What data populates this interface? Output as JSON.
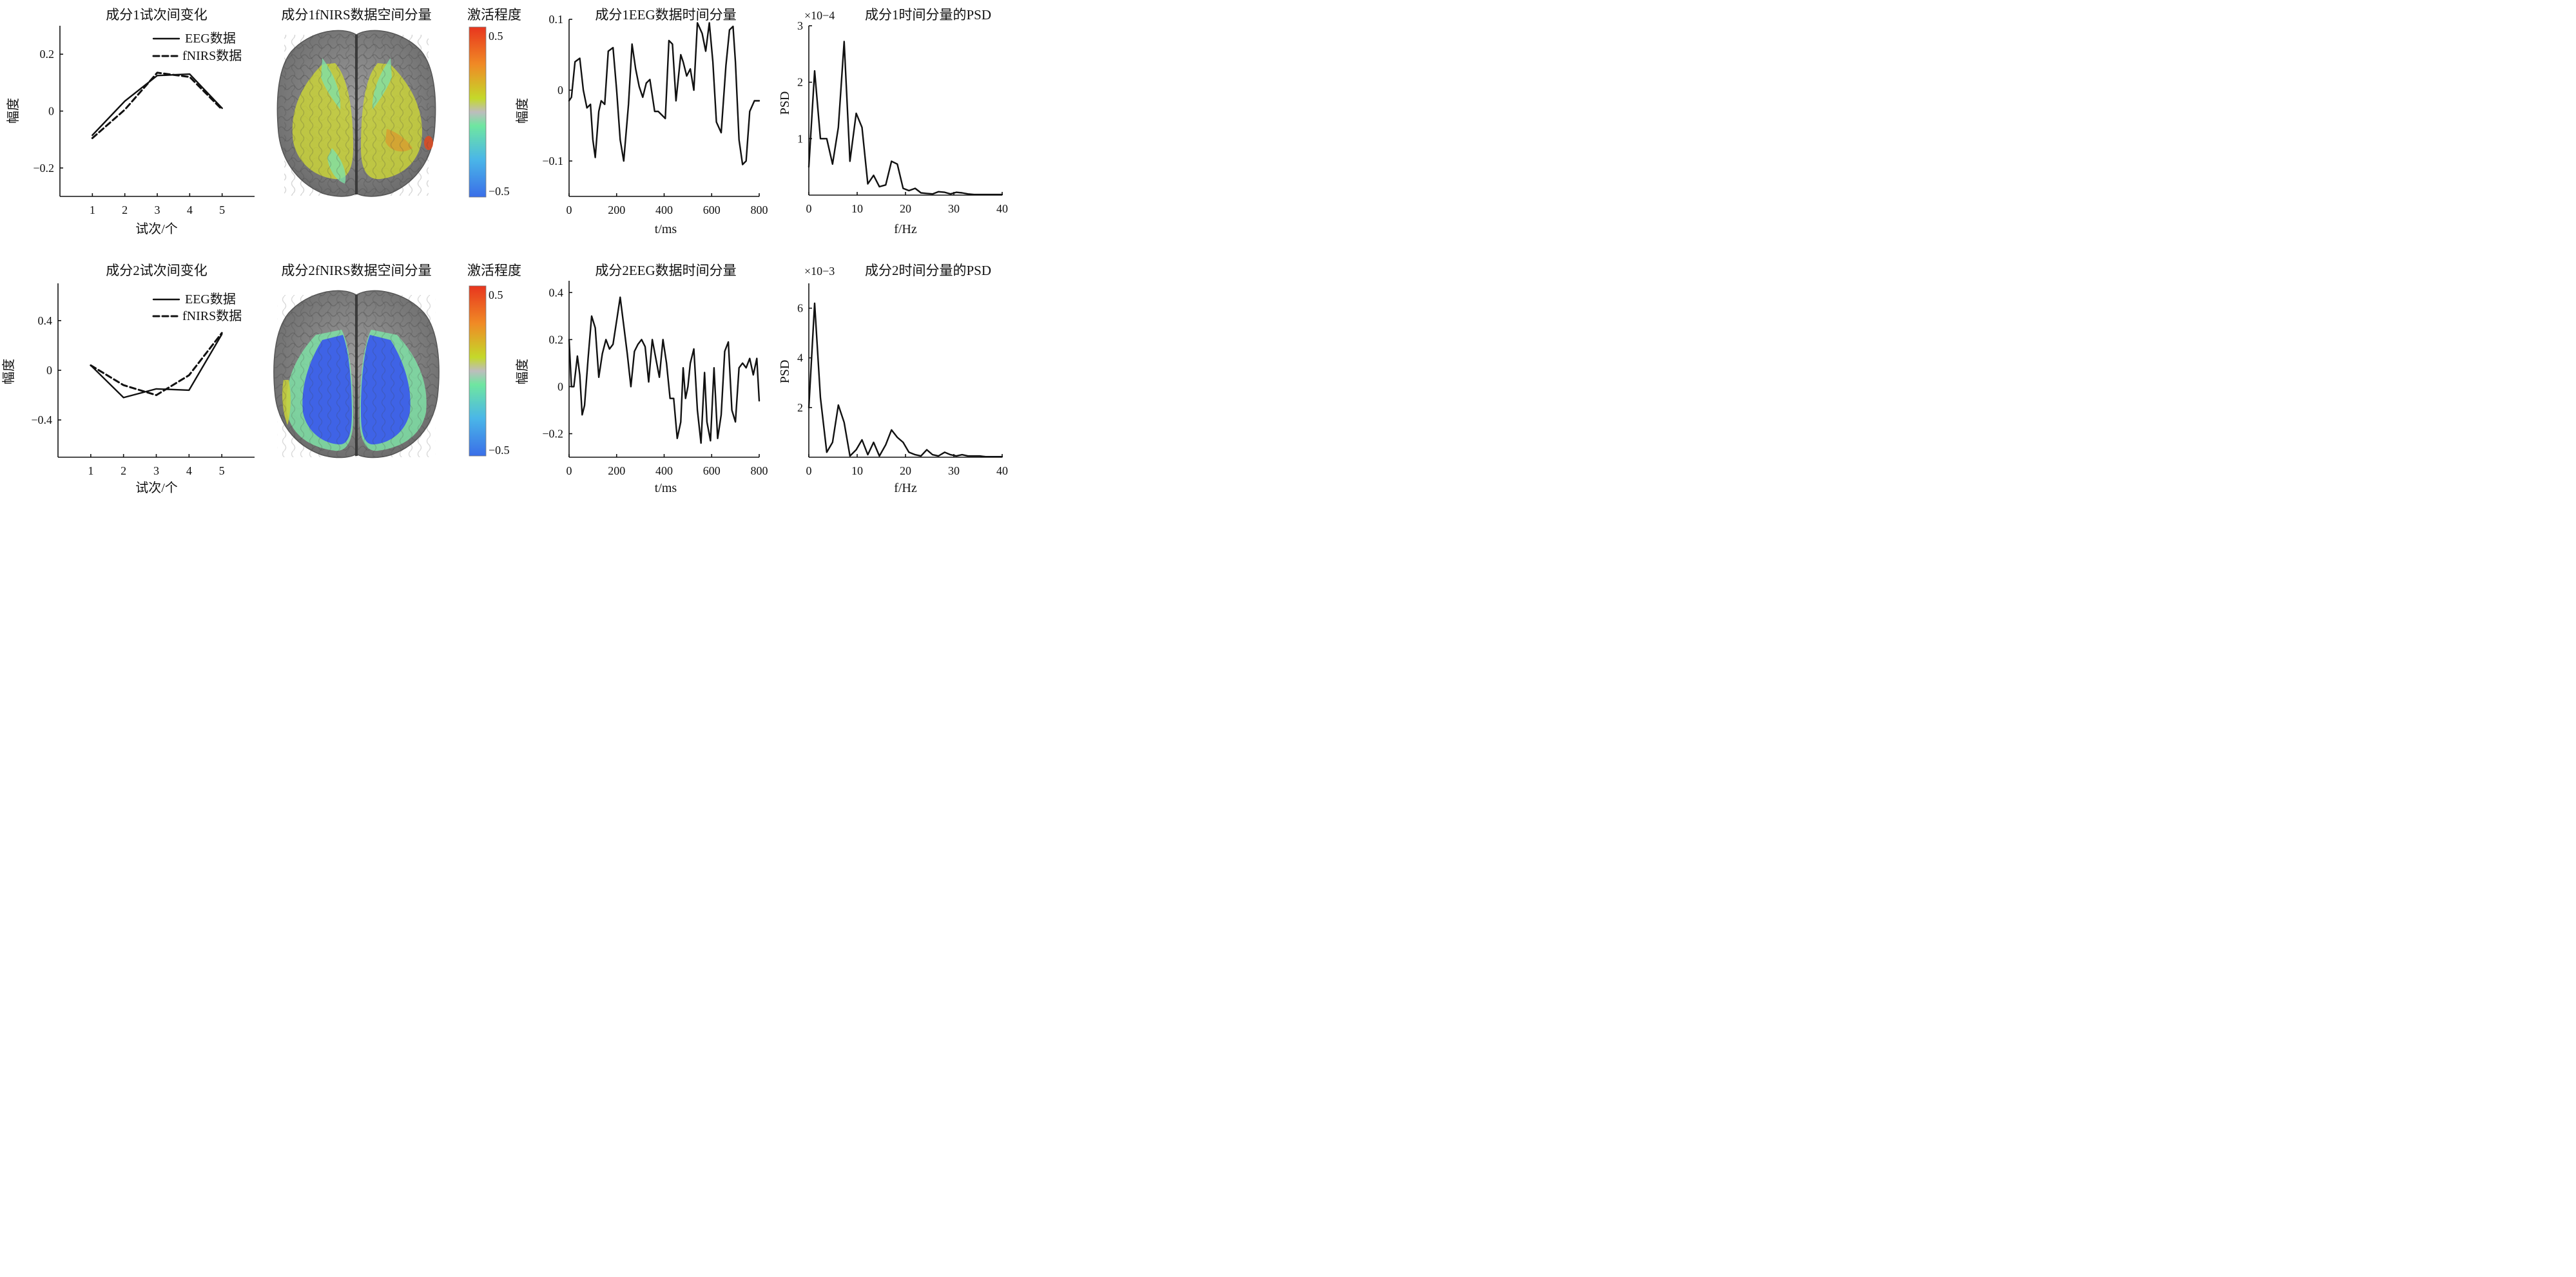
{
  "chart_data": [
    {
      "id": "p1",
      "type": "line",
      "title": "成分1试次间变化",
      "xlabel": "试次/个",
      "ylabel": "幅度",
      "xlim": [
        0.0,
        6.0
      ],
      "ylim": [
        -0.3,
        0.3
      ],
      "xticks": [
        1,
        2,
        3,
        4,
        5
      ],
      "yticks": [
        -0.2,
        0,
        0.2
      ],
      "ytick_labels": [
        "−0.2",
        "0",
        "0.2"
      ],
      "legend": "top-right",
      "series": [
        {
          "name": "EEG数据",
          "style": "solid",
          "x": [
            1,
            2,
            3,
            4,
            5
          ],
          "y": [
            -0.085,
            0.035,
            0.125,
            0.13,
            0.01
          ]
        },
        {
          "name": "fNIRS数据",
          "style": "dashed",
          "x": [
            1,
            2,
            3,
            4,
            5
          ],
          "y": [
            -0.095,
            0.005,
            0.135,
            0.12,
            0.005
          ]
        }
      ]
    },
    {
      "id": "p2",
      "type": "line",
      "title": "成分1EEG数据时间分量",
      "xlabel": "t/ms",
      "ylabel": "幅度",
      "xlim": [
        0,
        800
      ],
      "ylim": [
        -0.15,
        0.1
      ],
      "xticks": [
        0,
        200,
        400,
        600,
        800
      ],
      "yticks": [
        -0.1,
        0,
        0.1
      ],
      "ytick_labels": [
        "−0.1",
        "0",
        "0.1"
      ],
      "series": [
        {
          "name": "",
          "style": "solid",
          "x": [
            0,
            10,
            25,
            45,
            60,
            75,
            90,
            100,
            110,
            125,
            135,
            150,
            165,
            185,
            200,
            215,
            230,
            250,
            265,
            280,
            295,
            310,
            325,
            340,
            360,
            375,
            390,
            405,
            420,
            435,
            450,
            470,
            480,
            495,
            510,
            525,
            540,
            560,
            575,
            590,
            605,
            620,
            640,
            660,
            675,
            690,
            700,
            715,
            730,
            745,
            760,
            780,
            800
          ],
          "y": [
            -0.015,
            -0.01,
            0.04,
            0.045,
            0.0,
            -0.025,
            -0.02,
            -0.07,
            -0.095,
            -0.03,
            -0.015,
            -0.02,
            0.055,
            0.06,
            0.0,
            -0.07,
            -0.1,
            -0.02,
            0.065,
            0.03,
            0.005,
            -0.01,
            0.01,
            0.015,
            -0.03,
            -0.03,
            -0.035,
            -0.04,
            0.07,
            0.065,
            -0.015,
            0.05,
            0.04,
            0.02,
            0.03,
            0.0,
            0.095,
            0.08,
            0.055,
            0.095,
            0.04,
            -0.045,
            -0.06,
            0.035,
            0.085,
            0.09,
            0.04,
            -0.07,
            -0.105,
            -0.1,
            -0.03,
            -0.015,
            -0.015
          ]
        }
      ]
    },
    {
      "id": "p3",
      "type": "line",
      "title": "成分1时间分量的PSD",
      "xlabel": "f/Hz",
      "ylabel": "PSD",
      "scale_label": "×10−4",
      "xlim": [
        0,
        40
      ],
      "ylim": [
        0,
        3
      ],
      "xticks": [
        0,
        10,
        20,
        30,
        40
      ],
      "yticks": [
        1,
        2,
        3
      ],
      "series": [
        {
          "name": "",
          "style": "solid",
          "x": [
            0,
            1.2,
            2.4,
            3.7,
            4.9,
            6.1,
            7.3,
            8.5,
            9.8,
            11.0,
            12.2,
            13.4,
            14.6,
            15.9,
            17.1,
            18.3,
            19.5,
            20.7,
            22.0,
            23.2,
            24.4,
            25.6,
            26.8,
            28.1,
            29.3,
            30.5,
            31.7,
            32.9,
            34.2,
            35.4,
            36.6,
            37.8,
            40
          ],
          "y": [
            0.5,
            2.2,
            1.0,
            1.0,
            0.55,
            1.2,
            2.72,
            0.6,
            1.45,
            1.2,
            0.2,
            0.35,
            0.15,
            0.18,
            0.6,
            0.55,
            0.12,
            0.08,
            0.12,
            0.04,
            0.03,
            0.02,
            0.06,
            0.05,
            0.02,
            0.05,
            0.04,
            0.02,
            0.01,
            0.01,
            0.01,
            0.01,
            0.01
          ]
        }
      ]
    },
    {
      "id": "p4",
      "type": "line",
      "title": "成分2试次间变化",
      "xlabel": "试次/个",
      "ylabel": "幅度",
      "xlim": [
        0.0,
        6.0
      ],
      "ylim": [
        -0.7,
        0.7
      ],
      "xticks": [
        1,
        2,
        3,
        4,
        5
      ],
      "yticks": [
        -0.4,
        0,
        0.4
      ],
      "ytick_labels": [
        "−0.4",
        "0",
        "0.4"
      ],
      "legend": "top-right",
      "series": [
        {
          "name": "EEG数据",
          "style": "solid",
          "x": [
            1,
            2,
            3,
            4,
            5
          ],
          "y": [
            0.04,
            -0.22,
            -0.15,
            -0.16,
            0.29
          ]
        },
        {
          "name": "fNIRS数据",
          "style": "dashed",
          "x": [
            1,
            2,
            3,
            4,
            5
          ],
          "y": [
            0.04,
            -0.12,
            -0.2,
            -0.04,
            0.3
          ]
        }
      ]
    },
    {
      "id": "p5",
      "type": "line",
      "title": "成分2EEG数据时间分量",
      "xlabel": "t/ms",
      "ylabel": "幅度",
      "xlim": [
        0,
        800
      ],
      "ylim": [
        -0.3,
        0.45
      ],
      "xticks": [
        0,
        200,
        400,
        600,
        800
      ],
      "yticks": [
        -0.2,
        0,
        0.2,
        0.4
      ],
      "ytick_labels": [
        "−0.2",
        "0",
        "0.2",
        "0.4"
      ],
      "series": [
        {
          "name": "",
          "style": "solid",
          "x": [
            0,
            10,
            20,
            35,
            45,
            55,
            65,
            80,
            95,
            110,
            125,
            140,
            155,
            170,
            185,
            200,
            215,
            230,
            245,
            260,
            275,
            290,
            305,
            320,
            335,
            350,
            365,
            380,
            395,
            410,
            425,
            440,
            455,
            470,
            480,
            490,
            500,
            510,
            525,
            540,
            555,
            570,
            580,
            595,
            610,
            625,
            640,
            655,
            670,
            685,
            700,
            715,
            730,
            745,
            760,
            775,
            790,
            800
          ],
          "y": [
            0.2,
            0.0,
            0.0,
            0.13,
            0.05,
            -0.12,
            -0.08,
            0.12,
            0.3,
            0.25,
            0.04,
            0.14,
            0.2,
            0.16,
            0.18,
            0.28,
            0.38,
            0.26,
            0.14,
            0.0,
            0.15,
            0.18,
            0.2,
            0.17,
            0.02,
            0.2,
            0.12,
            0.04,
            0.2,
            0.1,
            -0.05,
            -0.05,
            -0.22,
            -0.15,
            0.08,
            -0.05,
            0.0,
            0.1,
            0.16,
            -0.1,
            -0.24,
            0.06,
            -0.15,
            -0.23,
            0.08,
            -0.22,
            -0.12,
            0.15,
            0.19,
            -0.1,
            -0.15,
            0.08,
            0.1,
            0.08,
            0.12,
            0.05,
            0.12,
            -0.06
          ]
        }
      ]
    },
    {
      "id": "p6",
      "type": "line",
      "title": "成分2时间分量的PSD",
      "xlabel": "f/Hz",
      "ylabel": "PSD",
      "scale_label": "×10−3",
      "xlim": [
        0,
        40
      ],
      "ylim": [
        0,
        7
      ],
      "xticks": [
        0,
        10,
        20,
        30,
        40
      ],
      "yticks": [
        2,
        4,
        6
      ],
      "series": [
        {
          "name": "",
          "style": "solid",
          "x": [
            0,
            1.2,
            2.4,
            3.7,
            4.9,
            6.1,
            7.3,
            8.5,
            9.8,
            11.0,
            12.2,
            13.4,
            14.6,
            15.9,
            17.1,
            18.3,
            19.5,
            20.7,
            22.0,
            23.2,
            24.4,
            25.6,
            26.8,
            28.1,
            29.3,
            30.5,
            31.7,
            32.9,
            34.2,
            35.4,
            36.6,
            37.8,
            40
          ],
          "y": [
            2.0,
            6.2,
            2.4,
            0.2,
            0.6,
            2.1,
            1.4,
            0.05,
            0.3,
            0.7,
            0.1,
            0.6,
            0.05,
            0.5,
            1.1,
            0.8,
            0.6,
            0.2,
            0.1,
            0.05,
            0.3,
            0.1,
            0.05,
            0.2,
            0.1,
            0.05,
            0.1,
            0.05,
            0.05,
            0.05,
            0.02,
            0.02,
            0.02
          ]
        }
      ]
    }
  ],
  "brain_maps": [
    {
      "title": "成分1fNIRS数据空间分量",
      "colorbar_title": "激活程度",
      "colorbar_max": "0.5",
      "colorbar_min": "−0.5",
      "activation": "positive"
    },
    {
      "title": "成分2fNIRS数据空间分量",
      "colorbar_title": "激活程度",
      "colorbar_max": "0.5",
      "colorbar_min": "−0.5",
      "activation": "negative"
    }
  ],
  "colors": {
    "line": "#111111",
    "cortex": "#8c8c8c",
    "colorbar_top": "#e8351e",
    "colorbar_bottom": "#3a6ee8"
  }
}
